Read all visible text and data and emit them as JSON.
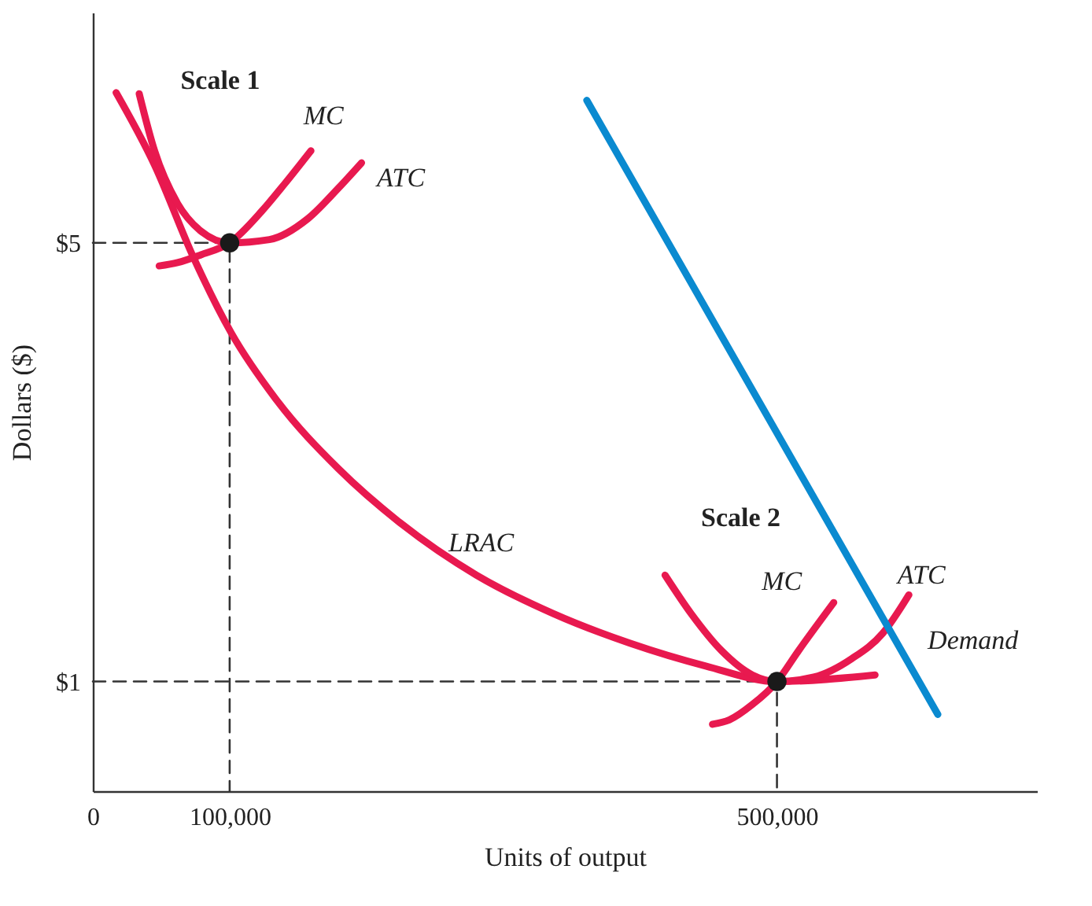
{
  "chart_data": {
    "type": "line",
    "xlabel": "Units of output",
    "ylabel": "Dollars ($)",
    "xlim": [
      0,
      690000
    ],
    "ylim": [
      0,
      7.1
    ],
    "xticks": [
      0,
      {
        "value": 100000,
        "label": "100,000"
      },
      {
        "value": 500000,
        "label": "500,000"
      }
    ],
    "yticks": [
      {
        "value": 1,
        "label": "$1"
      },
      {
        "value": 5,
        "label": "$5"
      }
    ],
    "grid": false,
    "line_style": "solid",
    "series": [
      {
        "line_style": "dashed",
        "color": "#333333",
        "x": [
          0,
          100000,
          100000
        ],
        "values": [
          5,
          5,
          0
        ]
      },
      {
        "line_style": "dashed",
        "color": "#333333",
        "x": [
          0,
          500000,
          500000
        ],
        "values": [
          1,
          1,
          0
        ]
      },
      {
        "color": "#e8194f",
        "x": [
          17000,
          45100,
          73100,
          101100,
          134700,
          179500,
          224300,
          280400,
          336400,
          392400,
          448400,
          500000,
          571700
        ],
        "values": [
          6.37,
          5.71,
          4.88,
          4.18,
          3.56,
          2.94,
          2.45,
          1.97,
          1.62,
          1.35,
          1.14,
          1.0,
          1.06
        ]
      },
      {
        "color": "#e8194f",
        "x": [
          33900,
          45100,
          61900,
          78700,
          100000,
          129100,
          157100,
          179500,
          196400
        ],
        "values": [
          6.36,
          5.84,
          5.36,
          5.11,
          5.0,
          5.03,
          5.22,
          5.5,
          5.73
        ]
      },
      {
        "color": "#e8194f",
        "x": [
          48500,
          61900,
          78700,
          100000,
          123500,
          140300,
          159400
        ],
        "values": [
          4.79,
          4.82,
          4.89,
          5.0,
          5.29,
          5.54,
          5.84
        ]
      },
      {
        "color": "#e8194f",
        "x": [
          418200,
          437200,
          459600,
          482000,
          500000,
          526900,
          554900,
          577300,
          596400
        ],
        "values": [
          1.97,
          1.62,
          1.28,
          1.06,
          1.0,
          1.04,
          1.21,
          1.44,
          1.79
        ]
      },
      {
        "color": "#e8194f",
        "x": [
          452900,
          465200,
          482000,
          500000,
          515700,
          541500
        ],
        "values": [
          0.61,
          0.65,
          0.79,
          1.0,
          1.28,
          1.72
        ]
      },
      {
        "color": "#0a8ad0",
        "x": [
          361000,
          617600
        ],
        "values": [
          6.3,
          0.7
        ]
      },
      {
        "type": "scatter",
        "marker": "circle",
        "color": "#1a1a1a",
        "x": [
          100000,
          500000
        ],
        "values": [
          5,
          1
        ]
      }
    ],
    "annotations": [
      "Scale 1",
      {
        "text": "MC",
        "x": 159400,
        "y": 5.84
      },
      {
        "text": "ATC",
        "x": 196400,
        "y": 5.73
      },
      {
        "text": "LRAC",
        "x": 280400,
        "y": 1.97
      },
      "Scale 2",
      {
        "text": "MC",
        "x": 541500,
        "y": 1.72
      },
      {
        "text": "ATC",
        "x": 596400,
        "y": 1.79
      },
      {
        "text": "Demand",
        "x": 586900,
        "y": 1.37
      }
    ]
  }
}
